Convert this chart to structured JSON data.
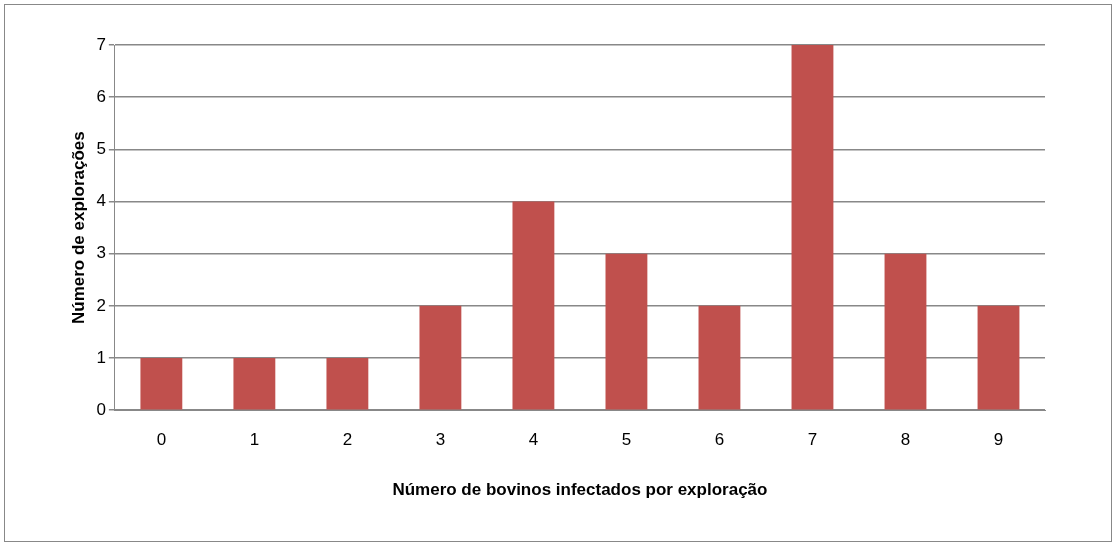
{
  "chart_data": {
    "type": "bar",
    "xlabel": "Número de bovinos infectados por exploração",
    "ylabel": "Número de explorações",
    "categories": [
      "0",
      "1",
      "2",
      "3",
      "4",
      "5",
      "6",
      "7",
      "8",
      "9"
    ],
    "values": [
      1,
      1,
      1,
      2,
      4,
      3,
      2,
      7,
      3,
      2
    ],
    "color": "#c0504d",
    "ylim": [
      0,
      7
    ],
    "yticks": [
      0,
      1,
      2,
      3,
      4,
      5,
      6,
      7
    ],
    "grid": "y",
    "legend": false
  }
}
